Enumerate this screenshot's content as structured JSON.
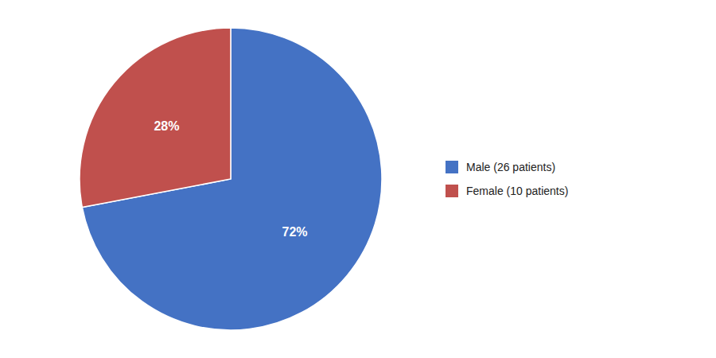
{
  "chart_data": {
    "type": "pie",
    "categories": [
      "Male (26 patients)",
      "Female (10 patients)"
    ],
    "values": [
      72,
      28
    ],
    "value_labels": [
      "72%",
      "28%"
    ],
    "colors": [
      "#4472C4",
      "#C0504D"
    ],
    "data_labels": true,
    "legend": "right"
  }
}
